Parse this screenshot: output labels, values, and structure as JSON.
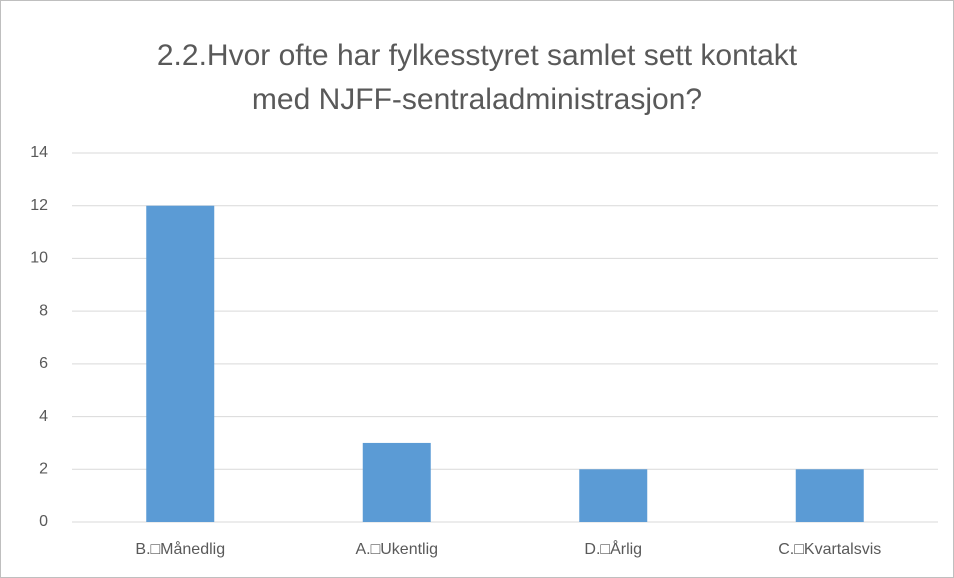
{
  "chart_data": {
    "type": "bar",
    "title": "2.2.Hvor ofte har fylkesstyret samlet sett kontakt med NJFF-sentraladministrasjon?",
    "categories": [
      "B.□Månedlig",
      "A.□Ukentlig",
      "D.□Årlig",
      "C.□Kvartalsvis"
    ],
    "values": [
      12,
      3,
      2,
      2
    ],
    "color": "#5b9bd5",
    "ylim": [
      0,
      14
    ],
    "yticks": [
      0,
      2,
      4,
      6,
      8,
      10,
      12,
      14
    ],
    "grid": true
  }
}
